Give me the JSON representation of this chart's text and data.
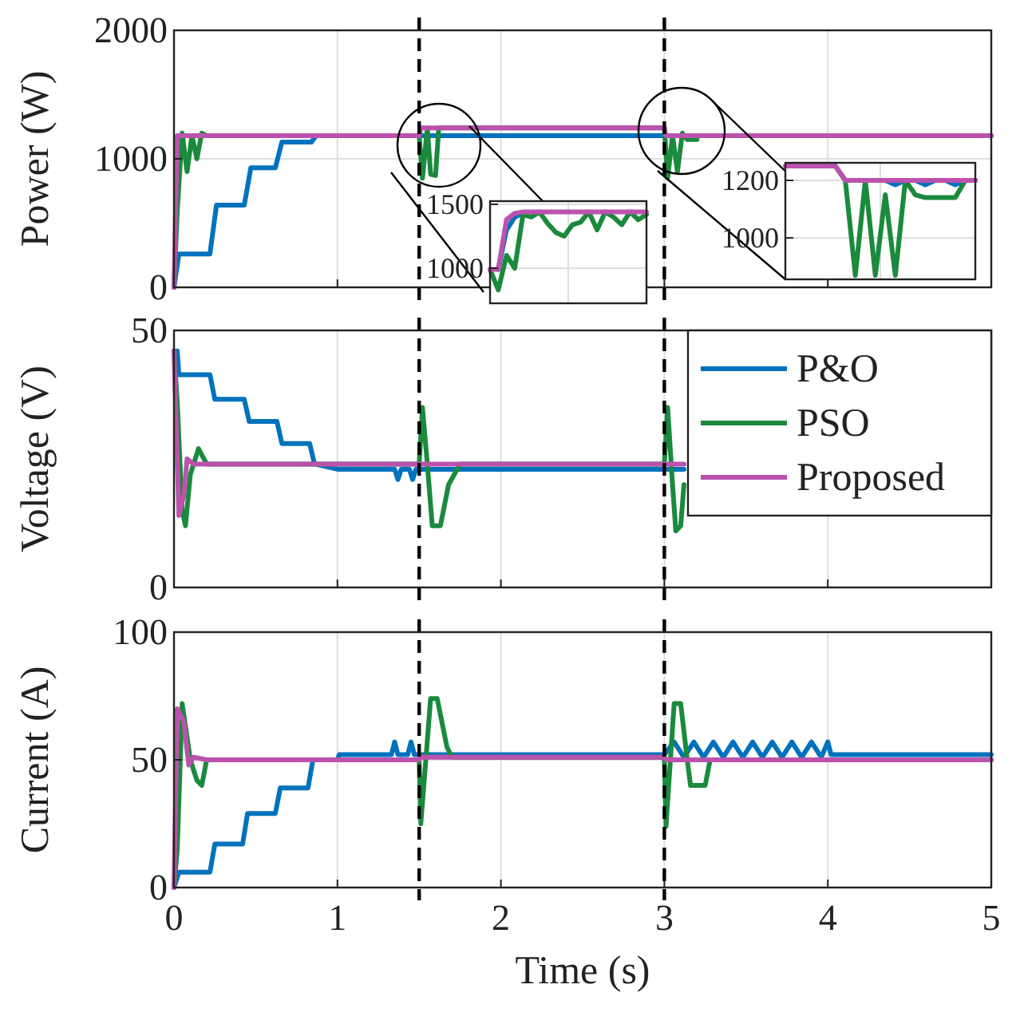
{
  "chart_data": [
    {
      "type": "line",
      "ylabel": "Power (W)",
      "xlim": [
        0,
        5
      ],
      "ylim": [
        0,
        2000
      ],
      "xticks": [
        0,
        1,
        2,
        3,
        4,
        5
      ],
      "yticks": [
        0,
        1000,
        2000
      ],
      "tick_labels": "y",
      "grid": true,
      "ref_lines": [
        {
          "axis": "x",
          "value": 1.5,
          "color": "#000000",
          "line_style": "dashed"
        },
        {
          "axis": "x",
          "value": 3,
          "color": "#000000",
          "line_style": "dashed"
        }
      ],
      "series": [
        {
          "color": "#0072bd",
          "x": [
            0,
            0.03,
            0.22,
            0.26,
            0.43,
            0.47,
            0.62,
            0.66,
            0.84,
            0.87,
            1.5,
            3,
            5
          ],
          "values": [
            0,
            260,
            260,
            640,
            640,
            930,
            930,
            1130,
            1130,
            1180,
            1180,
            1180,
            1180
          ]
        },
        {
          "color": "#1a8a3c",
          "x": [
            0,
            0.02,
            0.05,
            0.08,
            0.11,
            0.14,
            0.17,
            0.2,
            1.5,
            1.52,
            1.55,
            1.57,
            1.6,
            1.62,
            3,
            3.02,
            3.05,
            3.08,
            3.11,
            3.14,
            3.2
          ],
          "values": [
            0,
            600,
            1200,
            900,
            1180,
            1000,
            1200,
            1180,
            1180,
            850,
            1240,
            880,
            870,
            1240,
            1240,
            850,
            1180,
            900,
            1200,
            1150,
            1150
          ]
        },
        {
          "color": "#bb52ad",
          "x": [
            0,
            0.02,
            1.5,
            1.51,
            3,
            3.01,
            5
          ],
          "values": [
            0,
            1180,
            1180,
            1240,
            1240,
            1180,
            1180
          ]
        }
      ]
    },
    {
      "type": "line",
      "ylabel": "Voltage (V)",
      "xlim": [
        0,
        5
      ],
      "ylim": [
        0,
        50
      ],
      "xticks": [
        0,
        1,
        2,
        3,
        4,
        5
      ],
      "yticks": [
        0,
        50
      ],
      "tick_labels": "y",
      "grid": true,
      "legend": "top right",
      "ref_lines": [
        {
          "axis": "x",
          "value": 1.5,
          "color": "#000000",
          "line_style": "dashed"
        },
        {
          "axis": "x",
          "value": 3,
          "color": "#000000",
          "line_style": "dashed"
        }
      ],
      "series": [
        {
          "name": "P&O",
          "color": "#0072bd",
          "x": [
            0,
            0.02,
            0.03,
            0.22,
            0.25,
            0.43,
            0.46,
            0.63,
            0.66,
            0.83,
            0.86,
            1.0,
            1.35,
            1.37,
            1.39,
            1.44,
            1.46,
            1.48,
            1.5,
            2.5,
            3.0,
            3.12
          ],
          "values": [
            46,
            46,
            41.4,
            41.4,
            36.6,
            36.6,
            32.3,
            32.3,
            28,
            28,
            24,
            23,
            23,
            21,
            23,
            23,
            21,
            23,
            23,
            23,
            23,
            23
          ]
        },
        {
          "name": "PSO",
          "color": "#1a8a3c",
          "x": [
            0,
            0.02,
            0.05,
            0.07,
            0.1,
            0.12,
            0.15,
            0.2,
            1.5,
            1.52,
            1.55,
            1.58,
            1.63,
            1.68,
            1.75,
            3.0,
            3.02,
            3.05,
            3.07,
            3.1,
            3.12
          ],
          "values": [
            46,
            36,
            15,
            12,
            22,
            24,
            27,
            24,
            24,
            35,
            24,
            12,
            12,
            20,
            24,
            24,
            35,
            20,
            11,
            12,
            20
          ]
        },
        {
          "name": "Proposed",
          "color": "#bb52ad",
          "x": [
            0,
            0.03,
            0.06,
            0.08,
            0.12,
            0.2,
            1.5,
            3.0,
            3.12
          ],
          "values": [
            46,
            14,
            18,
            25,
            24,
            24,
            24,
            24,
            24
          ]
        }
      ]
    },
    {
      "type": "line",
      "xlabel": "Time (s)",
      "ylabel": "Current (A)",
      "xlim": [
        0,
        5
      ],
      "ylim": [
        0,
        100
      ],
      "xticks": [
        0,
        1,
        2,
        3,
        4,
        5
      ],
      "yticks": [
        0,
        50,
        100
      ],
      "grid": true,
      "ref_lines": [
        {
          "axis": "x",
          "value": 1.5,
          "color": "#000000",
          "line_style": "dashed"
        },
        {
          "axis": "x",
          "value": 3,
          "color": "#000000",
          "line_style": "dashed"
        }
      ],
      "series": [
        {
          "color": "#0072bd",
          "x": [
            0,
            0.03,
            0.22,
            0.25,
            0.42,
            0.45,
            0.62,
            0.65,
            0.82,
            0.85,
            1.0,
            1.01,
            1.33,
            1.35,
            1.37,
            1.43,
            1.45,
            1.47,
            1.5,
            3.0,
            3.06,
            3.12,
            3.18,
            3.24,
            3.3,
            3.36,
            3.42,
            3.48,
            3.54,
            3.6,
            3.66,
            3.72,
            3.78,
            3.84,
            3.9,
            3.96,
            4.0,
            4.02,
            5
          ],
          "values": [
            0,
            6,
            6,
            17,
            17,
            29,
            29,
            39,
            39,
            50,
            50,
            52,
            52,
            57,
            52,
            52,
            57,
            52,
            52,
            52,
            57,
            51,
            57,
            51,
            57,
            51,
            57,
            51,
            57,
            51,
            57,
            51,
            57,
            51,
            57,
            51,
            57,
            52,
            52
          ]
        },
        {
          "color": "#1a8a3c",
          "x": [
            0,
            0.02,
            0.05,
            0.1,
            0.14,
            0.17,
            0.2,
            1.5,
            1.51,
            1.57,
            1.61,
            1.67,
            1.7,
            3.0,
            3.01,
            3.06,
            3.1,
            3.14,
            3.16,
            3.25,
            3.28,
            5
          ],
          "values": [
            0,
            15,
            72,
            50,
            42,
            40,
            50,
            50,
            25,
            74,
            74,
            55,
            51,
            51,
            24,
            72,
            72,
            50,
            40,
            40,
            50,
            50
          ]
        },
        {
          "color": "#bb52ad",
          "x": [
            0,
            0.02,
            0.06,
            0.09,
            0.12,
            0.2,
            1.5,
            1.51,
            3.0,
            3.01,
            5
          ],
          "values": [
            0,
            70,
            65,
            48,
            51,
            50,
            50,
            51,
            51,
            50,
            50
          ]
        }
      ]
    },
    {
      "type": "line",
      "ylim": [
        725,
        1525
      ],
      "yticks": [
        1000,
        1500
      ],
      "tick_labels": "y",
      "grid": "y",
      "categories": [
        null,
        null,
        null,
        null,
        null,
        null,
        null,
        null,
        null,
        null,
        null,
        null,
        null,
        null,
        null,
        null,
        null,
        null,
        null,
        null
      ],
      "series": [
        {
          "color": "#0072bd",
          "values": [
            null,
            990,
            1300,
            1400,
            1430,
            null,
            null,
            null,
            null,
            null,
            null,
            null,
            null,
            null,
            null,
            null,
            null,
            null,
            null,
            null
          ]
        },
        {
          "color": "#1a8a3c",
          "values": [
            990,
            830,
            1100,
            1000,
            1420,
            1400,
            1440,
            1350,
            1280,
            1250,
            1340,
            1360,
            1440,
            1300,
            1440,
            1400,
            1340,
            1440,
            1380,
            1420
          ]
        },
        {
          "color": "#bb52ad",
          "values": [
            990,
            990,
            1380,
            1430,
            1440,
            1440,
            1440,
            1440,
            1440,
            1440,
            1440,
            1440,
            1440,
            1440,
            1440,
            1440,
            1440,
            1440,
            1440,
            1440
          ]
        }
      ]
    },
    {
      "type": "line",
      "ylim": [
        856,
        1261
      ],
      "yticks": [
        1000,
        1200
      ],
      "tick_labels": "y",
      "grid": "y",
      "categories": [
        null,
        null,
        null,
        null,
        null,
        null,
        null,
        null,
        null,
        null,
        null,
        null,
        null,
        null,
        null,
        null,
        null,
        null,
        null,
        null
      ],
      "series": [
        {
          "color": "#0072bd",
          "values": [
            null,
            null,
            null,
            null,
            null,
            null,
            null,
            null,
            null,
            null,
            1200,
            1185,
            1200,
            1200,
            1185,
            1200,
            1200,
            1185,
            1200,
            1200
          ]
        },
        {
          "color": "#1a8a3c",
          "values": [
            null,
            null,
            null,
            null,
            null,
            1250,
            1200,
            870,
            1200,
            870,
            1150,
            870,
            1200,
            1150,
            1140,
            1140,
            1140,
            1140,
            1200,
            1200
          ]
        },
        {
          "color": "#bb52ad",
          "values": [
            1250,
            1250,
            1250,
            1250,
            1250,
            1250,
            1200,
            1200,
            1200,
            1200,
            1200,
            1200,
            1200,
            1200,
            1200,
            1200,
            1200,
            1200,
            1200,
            1200
          ]
        }
      ]
    }
  ]
}
